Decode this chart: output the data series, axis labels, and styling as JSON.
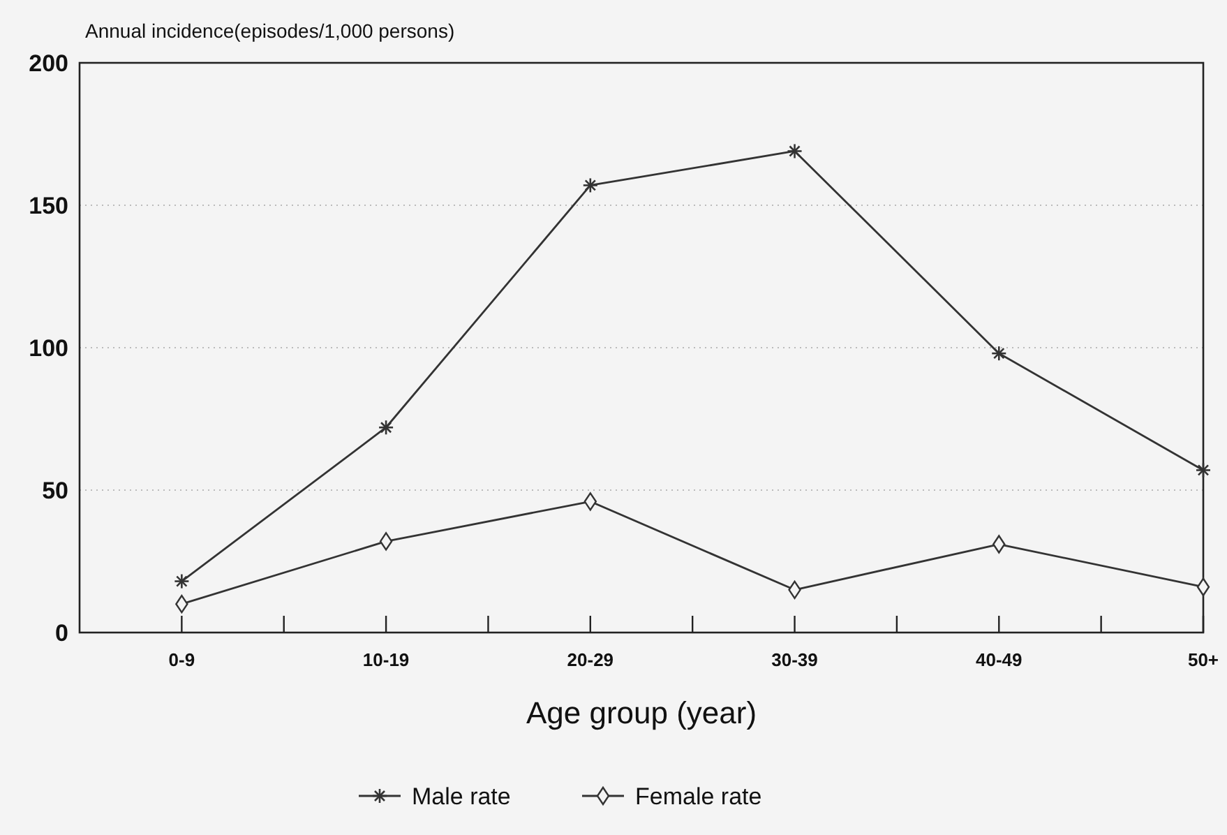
{
  "chart_data": {
    "type": "line",
    "ylabel": "Annual incidence(episodes/1,000 persons)",
    "xlabel": "Age group (year)",
    "categories": [
      "0-9",
      "10-19",
      "20-29",
      "30-39",
      "40-49",
      "50+"
    ],
    "ylim": [
      0,
      200
    ],
    "yticks": [
      0,
      50,
      100,
      150,
      200
    ],
    "grid": "y",
    "legend": "bottom",
    "series": [
      {
        "name": "Male rate",
        "color": "#333333",
        "marker": "cross",
        "values": [
          18,
          72,
          157,
          169,
          98,
          57
        ]
      },
      {
        "name": "Female rate",
        "color": "#333333",
        "marker": "diamond",
        "values": [
          10,
          32,
          46,
          15,
          31,
          16
        ]
      }
    ]
  }
}
